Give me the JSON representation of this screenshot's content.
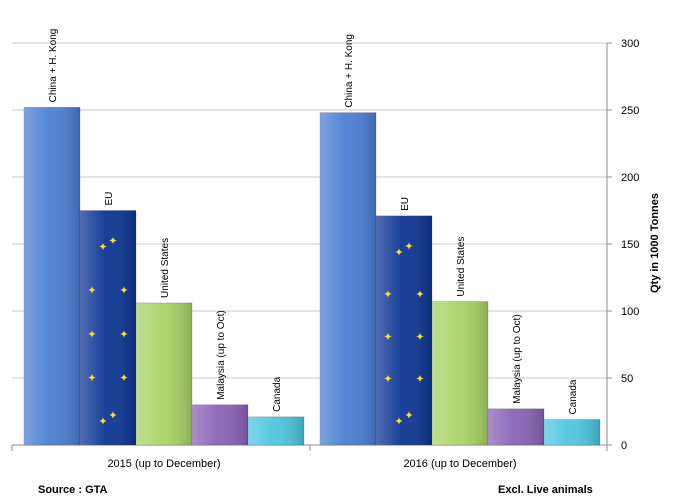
{
  "chart_data": {
    "type": "bar",
    "categories": [
      "2015 (up to December)",
      "2016 (up to December)"
    ],
    "series": [
      {
        "name": "China + H. Kong",
        "values": [
          252,
          248
        ],
        "color": "#4a7fd4"
      },
      {
        "name": "EU",
        "values": [
          175,
          171
        ],
        "color": "#0e3593"
      },
      {
        "name": "United States",
        "values": [
          106,
          107
        ],
        "color": "#a9d468"
      },
      {
        "name": "Malaysia (up to Oct)",
        "values": [
          30,
          27
        ],
        "color": "#8a63b8"
      },
      {
        "name": "Canada",
        "values": [
          21,
          19
        ],
        "color": "#4ec6de"
      }
    ],
    "ylabel": "Qty in 1000 Tonnes",
    "xlabel": "",
    "ylim": [
      0,
      300
    ],
    "yticks": [
      0,
      50,
      100,
      150,
      200,
      250,
      300
    ],
    "y_axis_side": "right",
    "grid": true,
    "legend": "none",
    "labels_position": "above bars, rotated vertical"
  },
  "notes": {
    "source": "Source : GTA",
    "exclusion": "Excl. Live animals"
  }
}
